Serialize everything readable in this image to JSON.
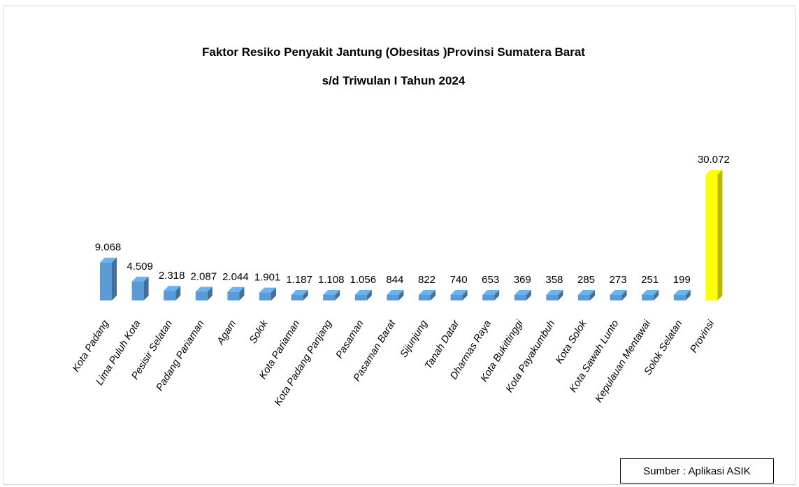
{
  "chart_data": {
    "type": "bar",
    "title_lines": [
      "Faktor Resiko Penyakit Jantung (Obesitas )Provinsi Sumatera Barat",
      "s/d Triwulan I Tahun  2024"
    ],
    "categories": [
      "Kota Padang",
      "Lima Puluh Kota",
      "Pesisir Selatan",
      "Padang Pariaman",
      "Agam",
      "Solok",
      "Kota Pariaman",
      "Kota Padang Panjang",
      "Pasaman",
      "Pasaman Barat",
      "Sijunjung",
      "Tanah Datar",
      "Dharmas Raya",
      "Kota Bukittinggi",
      "Kota Payakumbuh",
      "Kota Solok",
      "Kota Sawah Lunto",
      "Kepulauan Mentawai",
      "Solok Selatan",
      "Provinsi"
    ],
    "values": [
      9068,
      4509,
      2318,
      2087,
      2044,
      1901,
      1187,
      1108,
      1056,
      844,
      822,
      740,
      653,
      369,
      358,
      285,
      273,
      251,
      199,
      30072
    ],
    "value_labels": [
      "9.068",
      "4.509",
      "2.318",
      "2.087",
      "2.044",
      "1.901",
      "1.187",
      "1.108",
      "1.056",
      "844",
      "822",
      "740",
      "653",
      "369",
      "358",
      "285",
      "273",
      "251",
      "199",
      "30.072"
    ],
    "colors": {
      "default": "#5b9bd5",
      "highlight": "#ffff00"
    },
    "highlight_category": "Provinsi",
    "grid": false,
    "legend": "none"
  },
  "source_note": "Sumber : Aplikasi ASIK"
}
